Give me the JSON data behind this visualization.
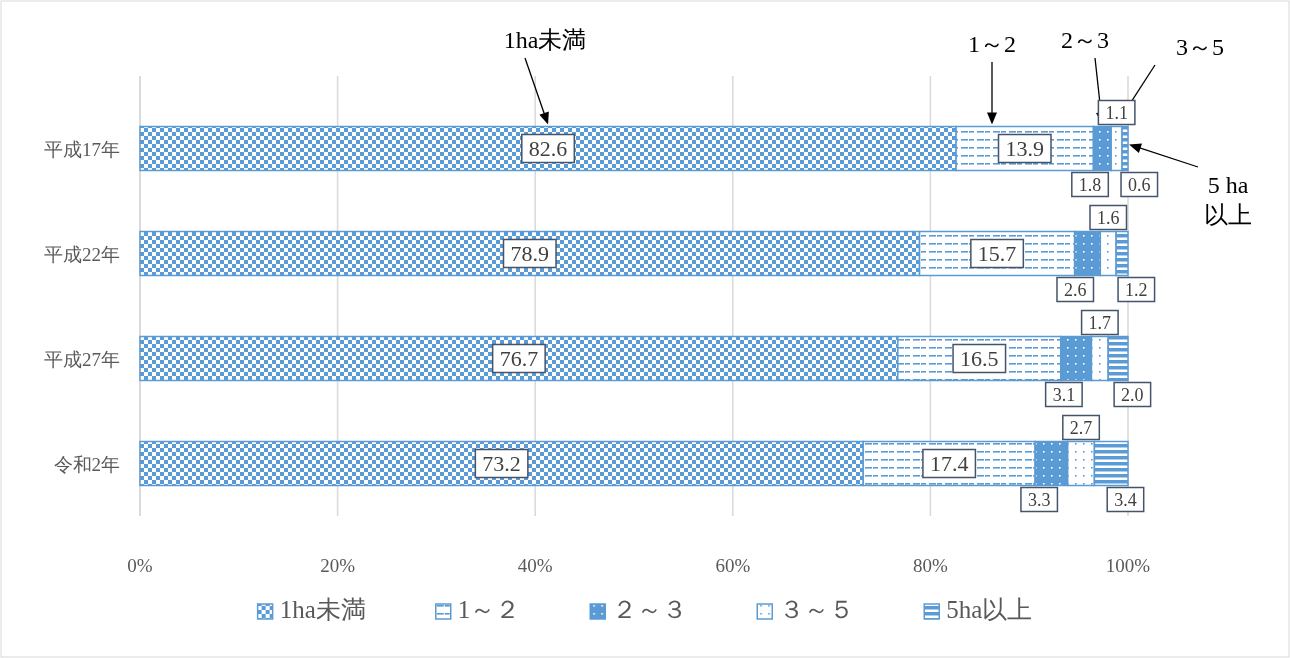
{
  "chart_data": {
    "type": "bar",
    "orientation": "horizontal",
    "stacked": true,
    "categories": [
      "平成17年",
      "平成22年",
      "平成27年",
      "令和2年"
    ],
    "series": [
      {
        "name": "1ha未満",
        "color": "#5b9bd5",
        "values": [
          82.6,
          78.9,
          76.7,
          73.2
        ],
        "value_labels": [
          "82.6",
          "78.9",
          "76.7",
          "73.2"
        ]
      },
      {
        "name": "1～２",
        "color": "#5b9bd5",
        "values": [
          13.9,
          15.7,
          16.5,
          17.4
        ],
        "value_labels": [
          "13.9",
          "15.7",
          "16.5",
          "17.4"
        ]
      },
      {
        "name": "２～３",
        "color": "#5b9bd5",
        "values": [
          1.8,
          2.6,
          3.1,
          3.3
        ],
        "value_labels": [
          "1.8",
          "2.6",
          "3.1",
          "3.3"
        ]
      },
      {
        "name": "３～５",
        "color": "#5b9bd5",
        "values": [
          1.1,
          1.6,
          1.7,
          2.7
        ],
        "value_labels": [
          "1.1",
          "1.6",
          "1.7",
          "2.7"
        ]
      },
      {
        "name": "5ha以上",
        "color": "#5b9bd5",
        "values": [
          0.6,
          1.2,
          2.0,
          3.4
        ],
        "value_labels": [
          "0.6",
          "1.2",
          "2.0",
          "3.4"
        ]
      }
    ],
    "xlim": [
      0,
      100
    ],
    "xticks": [
      {
        "value": 0,
        "label": "0%"
      },
      {
        "value": 20,
        "label": "20%"
      },
      {
        "value": 40,
        "label": "40%"
      },
      {
        "value": 60,
        "label": "60%"
      },
      {
        "value": 80,
        "label": "80%"
      },
      {
        "value": 100,
        "label": "100%"
      }
    ],
    "grid": "x",
    "legend": "bottom",
    "annotations": [
      "1ha未満",
      "1～2",
      "2～3",
      "3～5",
      "5 ha\n以上"
    ]
  }
}
